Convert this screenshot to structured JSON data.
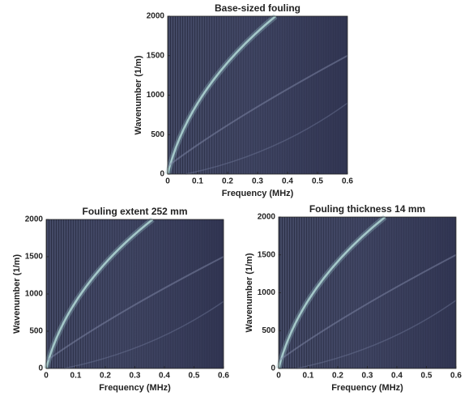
{
  "chart_data": [
    {
      "type": "heatmap",
      "title": "Base-sized fouling",
      "xlabel": "Frequency (MHz)",
      "ylabel": "Wavenumber (1/m)",
      "xlim": [
        0,
        0.6
      ],
      "ylim": [
        0,
        2000
      ],
      "xticks": [
        0,
        0.1,
        0.2,
        0.3,
        0.4,
        0.5,
        0.6
      ],
      "yticks": [
        0,
        500,
        1000,
        1500,
        2000
      ]
    },
    {
      "type": "heatmap",
      "title": "Fouling extent 252 mm",
      "xlabel": "Frequency (MHz)",
      "ylabel": "Wavenumber (1/m)",
      "xlim": [
        0,
        0.6
      ],
      "ylim": [
        0,
        2000
      ],
      "xticks": [
        0,
        0.1,
        0.2,
        0.3,
        0.4,
        0.5,
        0.6
      ],
      "yticks": [
        0,
        500,
        1000,
        1500,
        2000
      ]
    },
    {
      "type": "heatmap",
      "title": "Fouling thickness 14 mm",
      "xlabel": "Frequency (MHz)",
      "ylabel": "Wavenumber (1/m)",
      "xlim": [
        0,
        0.6
      ],
      "ylim": [
        0,
        2000
      ],
      "xticks": [
        0,
        0.1,
        0.2,
        0.3,
        0.4,
        0.5,
        0.6
      ],
      "yticks": [
        0,
        500,
        1000,
        1500,
        2000
      ]
    }
  ]
}
